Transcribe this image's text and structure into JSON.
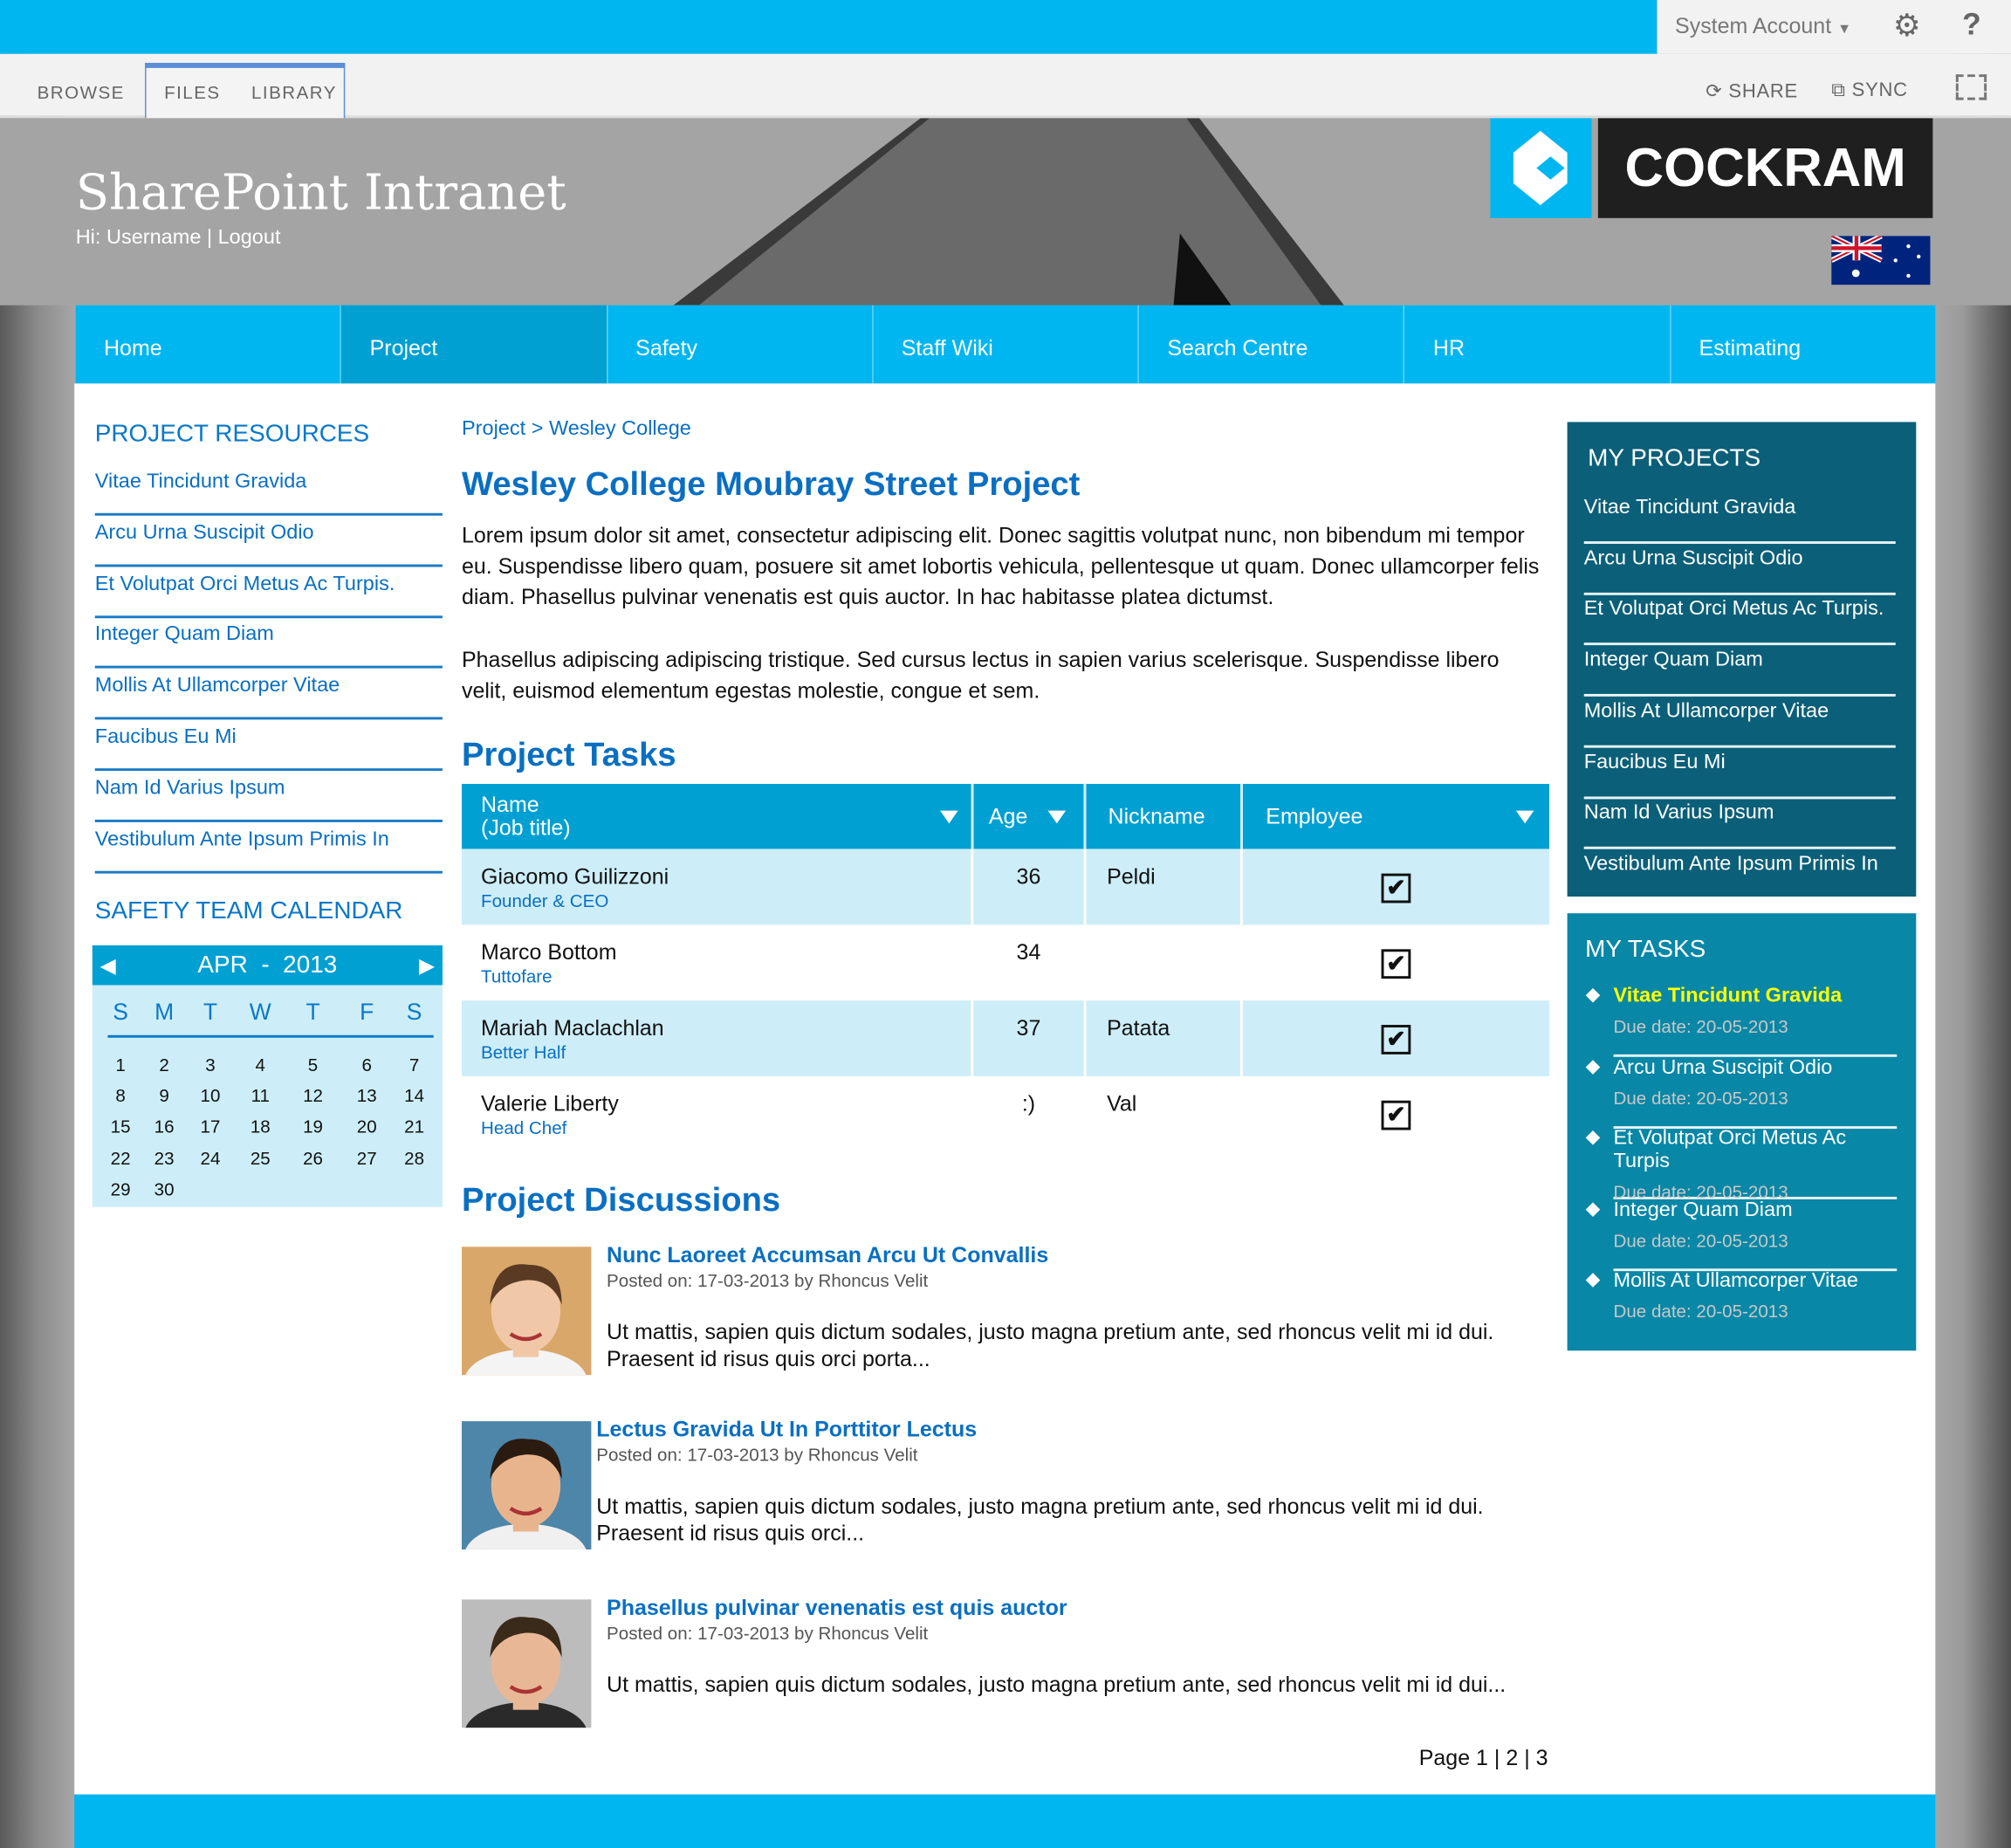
{
  "topbar": {
    "account": "System Account",
    "settings_icon": "gear-icon",
    "help": "?"
  },
  "ribbon": {
    "tabs": [
      "BROWSE",
      "FILES",
      "LIBRARY"
    ],
    "share": "SHARE",
    "sync": "SYNC"
  },
  "banner": {
    "title": "SharePoint Intranet",
    "greeting": "Hi: Username | Logout",
    "logo_text": "COCKRAM"
  },
  "nav": {
    "items": [
      "Home",
      "Project",
      "Safety",
      "Staff Wiki",
      "Search Centre",
      "HR",
      "Estimating"
    ],
    "active": "Project"
  },
  "left": {
    "resources_title": "PROJECT RESOURCES",
    "resources": [
      "Vitae Tincidunt Gravida",
      "Arcu Urna Suscipit Odio",
      "Et Volutpat Orci Metus Ac Turpis.",
      "Integer Quam Diam",
      "Mollis At Ullamcorper Vitae",
      "Faucibus Eu Mi",
      "Nam Id Varius Ipsum",
      "Vestibulum Ante Ipsum Primis In"
    ],
    "calendar_title": "SAFETY TEAM CALENDAR",
    "calendar": {
      "month": "APR",
      "sep": "-",
      "year": "2013",
      "weekdays": [
        "S",
        "M",
        "T",
        "W",
        "T",
        "F",
        "S"
      ],
      "days": [
        "1",
        "2",
        "3",
        "4",
        "5",
        "6",
        "7",
        "8",
        "9",
        "10",
        "11",
        "12",
        "13",
        "14",
        "15",
        "16",
        "17",
        "18",
        "19",
        "20",
        "21",
        "22",
        "23",
        "24",
        "25",
        "26",
        "27",
        "28",
        "29",
        "30"
      ]
    }
  },
  "main": {
    "breadcrumb": {
      "parent": "Project",
      "sep": ">",
      "current": "Wesley College"
    },
    "title": "Wesley College Moubray Street Project",
    "paragraphs": [
      "Lorem ipsum dolor sit amet, consectetur adipiscing elit. Donec sagittis volutpat nunc, non bibendum mi tempor eu. Suspendisse libero quam, posuere sit amet lobortis vehicula, pellentesque ut quam. Donec ullamcorper felis diam. Phasellus pulvinar venenatis est quis auctor. In hac habitasse platea dictumst.",
      "Phasellus adipiscing adipiscing tristique. Sed cursus lectus in sapien varius scelerisque. Suspendisse libero velit, euismod elementum egestas molestie, congue et sem."
    ],
    "tasks_title": "Project Tasks",
    "table": {
      "headers": {
        "name": "Name",
        "name_sub": "(Job title)",
        "age": "Age",
        "nickname": "Nickname",
        "employee": "Employee"
      },
      "rows": [
        {
          "name": "Giacomo Guilizzoni",
          "title": "Founder & CEO",
          "age": "36",
          "nickname": "Peldi",
          "employee": true
        },
        {
          "name": "Marco Bottom",
          "title": "Tuttofare",
          "age": "34",
          "nickname": "",
          "employee": true
        },
        {
          "name": "Mariah Maclachlan",
          "title": "Better Half",
          "age": "37",
          "nickname": "Patata",
          "employee": true
        },
        {
          "name": "Valerie Liberty",
          "title": "Head Chef",
          "age": ":)",
          "nickname": "Val",
          "employee": true
        }
      ]
    },
    "discussions_title": "Project Discussions",
    "discussions": [
      {
        "title": "Nunc Laoreet Accumsan Arcu Ut Convallis",
        "meta": "Posted on: 17-03-2013 by Rhoncus Velit",
        "text": "Ut mattis, sapien quis dictum sodales, justo magna pretium ante, sed rhoncus velit mi id dui. Praesent id risus quis orci porta..."
      },
      {
        "title": "Lectus Gravida Ut In Porttitor Lectus",
        "meta": "Posted on: 17-03-2013 by Rhoncus Velit",
        "text": "Ut mattis, sapien quis dictum sodales, justo magna pretium ante, sed rhoncus velit mi id dui. Praesent id risus quis orci..."
      },
      {
        "title": "Phasellus pulvinar venenatis est quis auctor",
        "meta": "Posted on: 17-03-2013 by Rhoncus Velit",
        "text": "Ut mattis, sapien quis dictum sodales, justo magna pretium ante, sed rhoncus velit mi id dui..."
      }
    ],
    "pagination": {
      "label": "Page",
      "pages": [
        "1",
        "2",
        "3"
      ]
    }
  },
  "right": {
    "projects_title": "MY PROJECTS",
    "projects": [
      "Vitae Tincidunt Gravida",
      "Arcu Urna Suscipit Odio",
      "Et Volutpat Orci Metus Ac Turpis.",
      "Integer Quam Diam",
      "Mollis At Ullamcorper Vitae",
      "Faucibus Eu Mi",
      "Nam Id Varius Ipsum",
      "Vestibulum Ante Ipsum Primis In"
    ],
    "tasks_title": "MY TASKS",
    "tasks": [
      {
        "title": "Vitae Tincidunt Gravida",
        "due": "Due date: 20-05-2013",
        "highlight": true
      },
      {
        "title": "Arcu Urna Suscipit Odio",
        "due": "Due date: 20-05-2013"
      },
      {
        "title": "Et Volutpat Orci Metus Ac Turpis",
        "due": "Due date: 20-05-2013"
      },
      {
        "title": "Integer Quam Diam",
        "due": "Due date: 20-05-2013"
      },
      {
        "title": "Mollis At Ullamcorper Vitae",
        "due": "Due date: 20-05-2013"
      }
    ]
  },
  "colors": {
    "brand_blue": "#00b6f0",
    "nav_active": "#00a0d2",
    "link": "#0a6fc2",
    "projects_bg": "#0b5f78",
    "tasks_bg": "#0887a6",
    "task_highlight": "#ffff00"
  }
}
